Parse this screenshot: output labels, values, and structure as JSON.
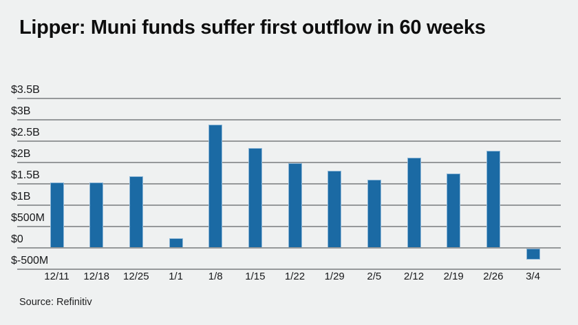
{
  "title": "Lipper: Muni funds suffer first outflow in 60 weeks",
  "source": "Source: Refinitiv",
  "colors": {
    "background": "#eff1f1",
    "bar_fill": "#1b6aa4",
    "bar_edge": "#8fb8d8",
    "gridline": "#95989a",
    "text": "#0e0e0e"
  },
  "chart_data": {
    "type": "bar",
    "title": "Lipper: Muni funds suffer first outflow in 60 weeks",
    "xlabel": "",
    "ylabel": "",
    "unit": "USD billions (weekly muni fund flows)",
    "categories": [
      "12/11",
      "12/18",
      "12/25",
      "1/1",
      "1/8",
      "1/15",
      "1/22",
      "1/29",
      "2/5",
      "2/12",
      "2/19",
      "2/26",
      "3/4"
    ],
    "values": [
      1.55,
      1.55,
      1.7,
      0.25,
      2.9,
      2.35,
      2.0,
      1.82,
      1.62,
      2.13,
      1.76,
      2.28,
      -0.28
    ],
    "ytick_labels": [
      "$3.5B",
      "$3B",
      "$2.5B",
      "$2B",
      "$1.5B",
      "$1B",
      "$500M",
      "$0",
      "$-500M"
    ],
    "ytick_values": [
      3.5,
      3.0,
      2.5,
      2.0,
      1.5,
      1.0,
      0.5,
      0.0,
      -0.5
    ],
    "ylim": [
      -0.5,
      3.5
    ],
    "grid": true,
    "legend": false,
    "source_note": "Source: Refinitiv"
  }
}
